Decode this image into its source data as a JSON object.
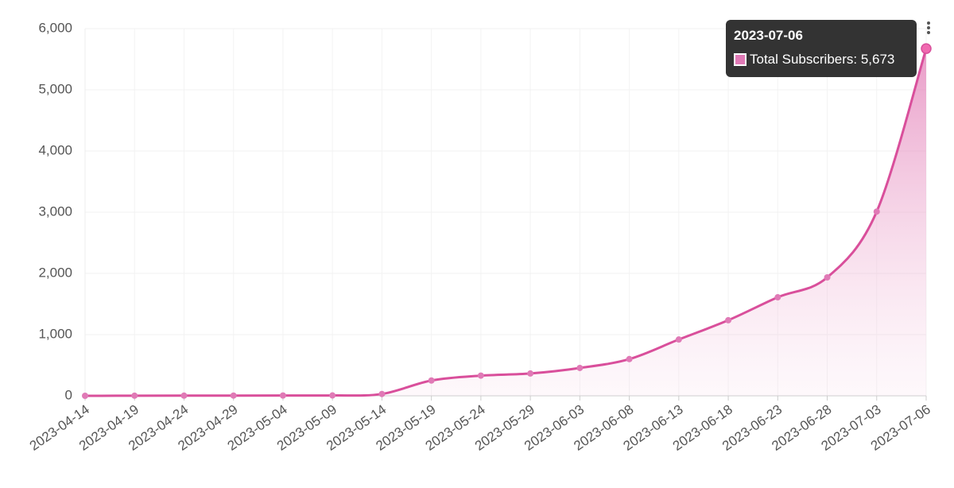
{
  "chart_data": {
    "type": "area",
    "categories": [
      "2023-04-14",
      "2023-04-19",
      "2023-04-24",
      "2023-04-29",
      "2023-05-04",
      "2023-05-09",
      "2023-05-14",
      "2023-05-19",
      "2023-05-24",
      "2023-05-29",
      "2023-06-03",
      "2023-06-08",
      "2023-06-13",
      "2023-06-18",
      "2023-06-23",
      "2023-06-28",
      "2023-07-03",
      "2023-07-06"
    ],
    "series": [
      {
        "name": "Total Subscribers",
        "color": "#d94f9b",
        "values": [
          0,
          2,
          3,
          4,
          5,
          6,
          30,
          250,
          330,
          365,
          455,
          600,
          920,
          1235,
          1610,
          1935,
          3010,
          5673
        ],
        "value_labels": [
          null,
          null,
          null,
          null,
          null,
          null,
          null,
          null,
          null,
          null,
          null,
          null,
          null,
          null,
          null,
          null,
          null,
          "5,673"
        ]
      }
    ],
    "ylim": [
      0,
      6000
    ],
    "yticks": [
      0,
      {
        "value": 1000,
        "label": "1,000"
      },
      {
        "value": 2000,
        "label": "2,000"
      },
      {
        "value": 3000,
        "label": "3,000"
      },
      {
        "value": 4000,
        "label": "4,000"
      },
      {
        "value": 5000,
        "label": "5,000"
      },
      {
        "value": 6000,
        "label": "6,000"
      }
    ],
    "grid": true
  }
}
